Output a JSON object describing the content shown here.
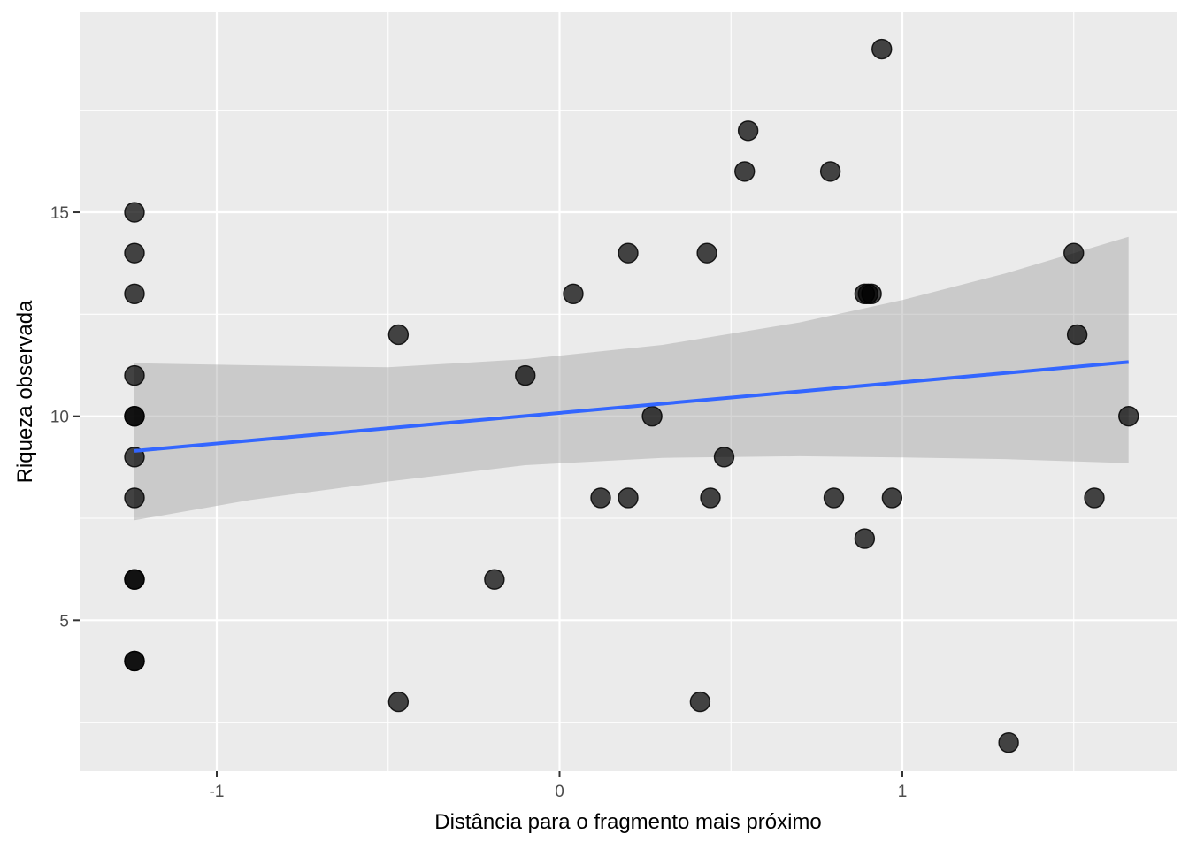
{
  "chart_data": {
    "type": "scatter",
    "xlabel": "Distância para o fragmento mais próximo",
    "ylabel": "Riqueza observada",
    "xlim": [
      -1.4,
      1.8
    ],
    "ylim": [
      1.3,
      19.9
    ],
    "x_ticks": [
      -1,
      0,
      1
    ],
    "x_tick_labels": [
      "-1",
      "0",
      "1"
    ],
    "y_ticks": [
      5,
      10,
      15
    ],
    "y_tick_labels": [
      "5",
      "10",
      "15"
    ],
    "grid": true,
    "points": [
      {
        "x": -1.24,
        "y": 15
      },
      {
        "x": -1.24,
        "y": 14
      },
      {
        "x": -1.24,
        "y": 13
      },
      {
        "x": -1.24,
        "y": 11
      },
      {
        "x": -1.24,
        "y": 10
      },
      {
        "x": -1.24,
        "y": 10
      },
      {
        "x": -1.24,
        "y": 9
      },
      {
        "x": -1.24,
        "y": 8
      },
      {
        "x": -1.24,
        "y": 6
      },
      {
        "x": -1.24,
        "y": 6
      },
      {
        "x": -1.24,
        "y": 4
      },
      {
        "x": -1.24,
        "y": 4
      },
      {
        "x": -0.47,
        "y": 12
      },
      {
        "x": -0.47,
        "y": 3
      },
      {
        "x": -0.19,
        "y": 6
      },
      {
        "x": -0.1,
        "y": 11
      },
      {
        "x": 0.04,
        "y": 13
      },
      {
        "x": 0.12,
        "y": 8
      },
      {
        "x": 0.2,
        "y": 14
      },
      {
        "x": 0.2,
        "y": 8
      },
      {
        "x": 0.27,
        "y": 10
      },
      {
        "x": 0.41,
        "y": 3
      },
      {
        "x": 0.43,
        "y": 14
      },
      {
        "x": 0.44,
        "y": 8
      },
      {
        "x": 0.48,
        "y": 9
      },
      {
        "x": 0.54,
        "y": 16
      },
      {
        "x": 0.55,
        "y": 17
      },
      {
        "x": 0.79,
        "y": 16
      },
      {
        "x": 0.8,
        "y": 8
      },
      {
        "x": 0.89,
        "y": 13
      },
      {
        "x": 0.9,
        "y": 13
      },
      {
        "x": 0.91,
        "y": 13
      },
      {
        "x": 0.89,
        "y": 7
      },
      {
        "x": 0.94,
        "y": 19
      },
      {
        "x": 0.97,
        "y": 8
      },
      {
        "x": 1.31,
        "y": 2
      },
      {
        "x": 1.5,
        "y": 14
      },
      {
        "x": 1.51,
        "y": 12
      },
      {
        "x": 1.56,
        "y": 8
      },
      {
        "x": 1.66,
        "y": 10
      }
    ],
    "fit_line": {
      "x": [
        -1.24,
        1.66
      ],
      "y": [
        9.15,
        11.33
      ]
    },
    "confidence_band": {
      "x": [
        -1.24,
        -0.9,
        -0.5,
        -0.1,
        0.3,
        0.7,
        1.0,
        1.3,
        1.66
      ],
      "lower": [
        7.45,
        7.95,
        8.4,
        8.8,
        8.98,
        9.02,
        8.99,
        8.95,
        8.85
      ],
      "upper": [
        11.3,
        11.25,
        11.2,
        11.4,
        11.75,
        12.3,
        12.85,
        13.5,
        14.4
      ]
    },
    "colors": {
      "panel": "#ebebeb",
      "grid": "#ffffff",
      "point_fill": "#000000",
      "fit_line": "#3366ff",
      "band": "#999999"
    }
  }
}
